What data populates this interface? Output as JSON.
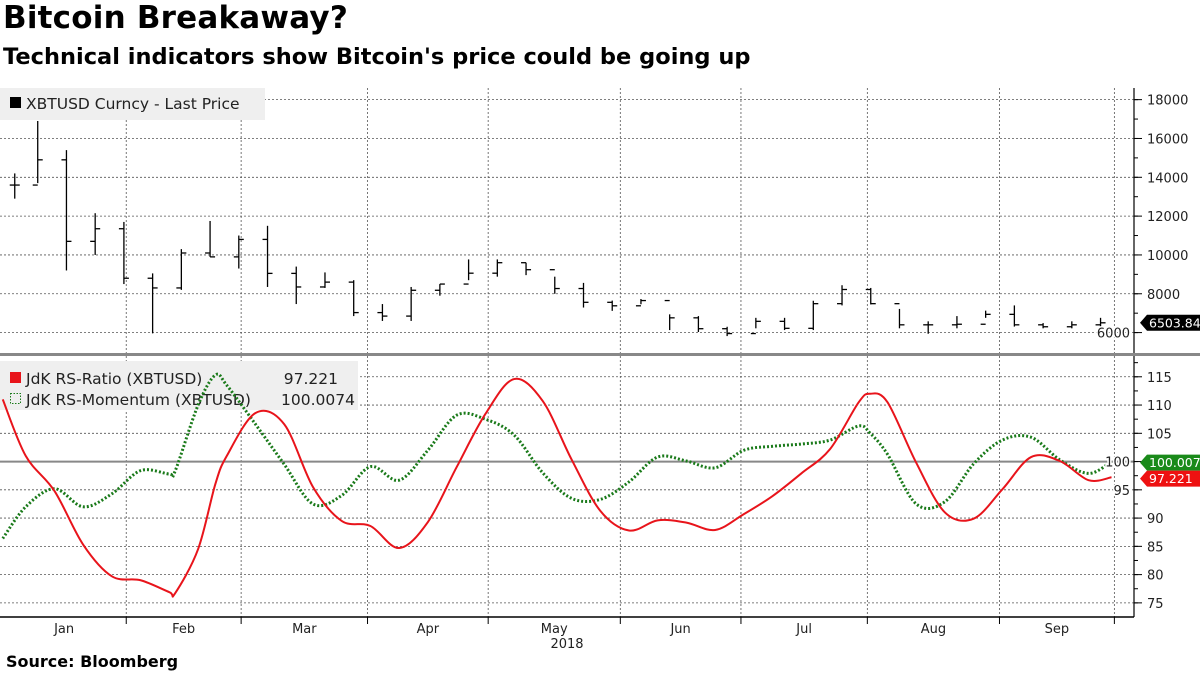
{
  "title": "Bitcoin Breakaway?",
  "subtitle": "Technical indicators show Bitcoin's price could be going up",
  "source": "Source: Bloomberg",
  "colors": {
    "price": "#000000",
    "rs_ratio": "#e8141b",
    "rs_momentum": "#1a7a1a",
    "tag_price": "#000000",
    "tag_ratio": "#ee1111",
    "tag_momentum": "#1a8a1a",
    "reference_line": "#888888"
  },
  "chart_data": [
    {
      "type": "ohlc-bar",
      "panel": "upper",
      "legend": [
        {
          "label": "XBTUSD Curncy - Last Price",
          "icon": "filled-square-icon"
        }
      ],
      "last_value_tag": "6503.84",
      "ylim": [
        5000,
        18600
      ],
      "yticks": [
        "6000",
        "8000",
        "10000",
        "12000",
        "14000",
        "16000",
        "18000"
      ],
      "grid": true,
      "axis_position": "right",
      "note": "weekly sampling: h=high, l=low, c=close",
      "bars": [
        {
          "date": "2018-01-02",
          "h": 14200,
          "l": 12900,
          "c": 13600
        },
        {
          "date": "2018-01-08",
          "h": 16900,
          "l": 13700,
          "c": 14900
        },
        {
          "date": "2018-01-15",
          "h": 15400,
          "l": 9200,
          "c": 10700
        },
        {
          "date": "2018-01-22",
          "h": 12150,
          "l": 10000,
          "c": 11350
        },
        {
          "date": "2018-01-29",
          "h": 11700,
          "l": 8500,
          "c": 8800
        },
        {
          "date": "2018-02-05",
          "h": 9050,
          "l": 5960,
          "c": 8300
        },
        {
          "date": "2018-02-12",
          "h": 10300,
          "l": 8200,
          "c": 10100
        },
        {
          "date": "2018-02-19",
          "h": 11750,
          "l": 9900,
          "c": 9900
        },
        {
          "date": "2018-02-26",
          "h": 11000,
          "l": 9300,
          "c": 10800
        },
        {
          "date": "2018-03-05",
          "h": 11500,
          "l": 8350,
          "c": 9050
        },
        {
          "date": "2018-03-12",
          "h": 9400,
          "l": 7470,
          "c": 8350
        },
        {
          "date": "2018-03-19",
          "h": 9100,
          "l": 8300,
          "c": 8600
        },
        {
          "date": "2018-03-26",
          "h": 8700,
          "l": 6850,
          "c": 7030
        },
        {
          "date": "2018-04-02",
          "h": 7470,
          "l": 6600,
          "c": 6850
        },
        {
          "date": "2018-04-09",
          "h": 8350,
          "l": 6600,
          "c": 8180
        },
        {
          "date": "2018-04-16",
          "h": 8500,
          "l": 7900,
          "c": 8500
        },
        {
          "date": "2018-04-23",
          "h": 9770,
          "l": 8700,
          "c": 9060
        },
        {
          "date": "2018-04-30",
          "h": 9770,
          "l": 8880,
          "c": 9600
        },
        {
          "date": "2018-05-07",
          "h": 9600,
          "l": 8960,
          "c": 9240
        },
        {
          "date": "2018-05-14",
          "h": 8880,
          "l": 8000,
          "c": 8270
        },
        {
          "date": "2018-05-21",
          "h": 8560,
          "l": 7290,
          "c": 7560
        },
        {
          "date": "2018-05-28",
          "h": 7650,
          "l": 7120,
          "c": 7380
        },
        {
          "date": "2018-06-04",
          "h": 7730,
          "l": 7460,
          "c": 7650
        },
        {
          "date": "2018-06-11",
          "h": 6940,
          "l": 6130,
          "c": 6760
        },
        {
          "date": "2018-06-18",
          "h": 6850,
          "l": 6030,
          "c": 6200
        },
        {
          "date": "2018-06-25",
          "h": 6300,
          "l": 5820,
          "c": 5950
        },
        {
          "date": "2018-07-02",
          "h": 6760,
          "l": 6220,
          "c": 6580
        },
        {
          "date": "2018-07-09",
          "h": 6760,
          "l": 6130,
          "c": 6220
        },
        {
          "date": "2018-07-16",
          "h": 7640,
          "l": 6130,
          "c": 7490
        },
        {
          "date": "2018-07-23",
          "h": 8440,
          "l": 7400,
          "c": 8220
        },
        {
          "date": "2018-07-30",
          "h": 8300,
          "l": 7450,
          "c": 7490
        },
        {
          "date": "2018-08-06",
          "h": 7220,
          "l": 6220,
          "c": 6400
        },
        {
          "date": "2018-08-13",
          "h": 6580,
          "l": 5940,
          "c": 6400
        },
        {
          "date": "2018-08-20",
          "h": 6850,
          "l": 6220,
          "c": 6430
        },
        {
          "date": "2018-08-27",
          "h": 7130,
          "l": 6760,
          "c": 6940
        },
        {
          "date": "2018-09-03",
          "h": 7400,
          "l": 6310,
          "c": 6400
        },
        {
          "date": "2018-09-10",
          "h": 6490,
          "l": 6220,
          "c": 6300
        },
        {
          "date": "2018-09-17",
          "h": 6580,
          "l": 6220,
          "c": 6400
        },
        {
          "date": "2018-09-24",
          "h": 6760,
          "l": 6310,
          "c": 6503.84
        }
      ]
    },
    {
      "type": "line",
      "panel": "lower",
      "ylim": [
        72.5,
        118.5
      ],
      "yticks": [
        "75",
        "80",
        "85",
        "90",
        "95",
        "100",
        "105",
        "110",
        "115"
      ],
      "reference_line": 100,
      "grid": true,
      "axis_position": "right",
      "x": [
        "2018-01-02",
        "2018-01-08",
        "2018-01-15",
        "2018-01-22",
        "2018-01-29",
        "2018-02-05",
        "2018-02-12",
        "2018-02-13",
        "2018-02-19",
        "2018-02-22",
        "2018-02-26",
        "2018-03-05",
        "2018-03-12",
        "2018-03-19",
        "2018-03-26",
        "2018-04-02",
        "2018-04-09",
        "2018-04-16",
        "2018-04-23",
        "2018-04-30",
        "2018-05-07",
        "2018-05-14",
        "2018-05-21",
        "2018-05-28",
        "2018-06-04",
        "2018-06-11",
        "2018-06-18",
        "2018-06-25",
        "2018-07-02",
        "2018-07-09",
        "2018-07-16",
        "2018-07-23",
        "2018-07-30",
        "2018-08-01",
        "2018-08-06",
        "2018-08-13",
        "2018-08-20",
        "2018-08-27",
        "2018-09-03",
        "2018-09-10",
        "2018-09-17",
        "2018-09-24",
        "2018-09-28"
      ],
      "series": [
        {
          "name": "JdK RS-Ratio (XBTUSD)",
          "last_value": "97.221",
          "style": "solid",
          "icon": "filled-square-icon",
          "values": [
            111,
            101,
            94.8,
            85.3,
            79.7,
            79,
            76.9,
            76.7,
            84.5,
            96,
            101,
            108.6,
            106.6,
            95.5,
            89.5,
            88.6,
            84.7,
            89.3,
            99,
            108.4,
            114.6,
            110.7,
            100.4,
            91.3,
            87.8,
            89.6,
            89.2,
            87.9,
            90.7,
            93.9,
            97.9,
            102.2,
            110.5,
            112,
            110.5,
            99.8,
            91,
            89.9,
            95.1,
            100.8,
            100.1,
            96.7,
            97.221
          ]
        },
        {
          "name": "JdK RS-Momentum (XBTUSD)",
          "last_value": "100.0074",
          "style": "dotted",
          "icon": "dotted-square-icon",
          "values": [
            86.4,
            92,
            95.2,
            92,
            94.3,
            98.4,
            97.8,
            98.3,
            110,
            115.3,
            113.5,
            106.6,
            99.5,
            92.5,
            94,
            99.1,
            96.7,
            102,
            108.2,
            107.5,
            104.7,
            98,
            93.5,
            93.3,
            96.4,
            100.8,
            100.1,
            98.9,
            102,
            102.7,
            103.1,
            103.8,
            106.3,
            105,
            101.3,
            92.5,
            92.9,
            99.6,
            103.8,
            104.3,
            100.3,
            97.9,
            100.0074
          ]
        }
      ]
    }
  ],
  "x_axis": {
    "months": [
      "Jan",
      "Feb",
      "Mar",
      "Apr",
      "May",
      "Jun",
      "Jul",
      "Aug",
      "Sep"
    ],
    "year": "2018"
  }
}
